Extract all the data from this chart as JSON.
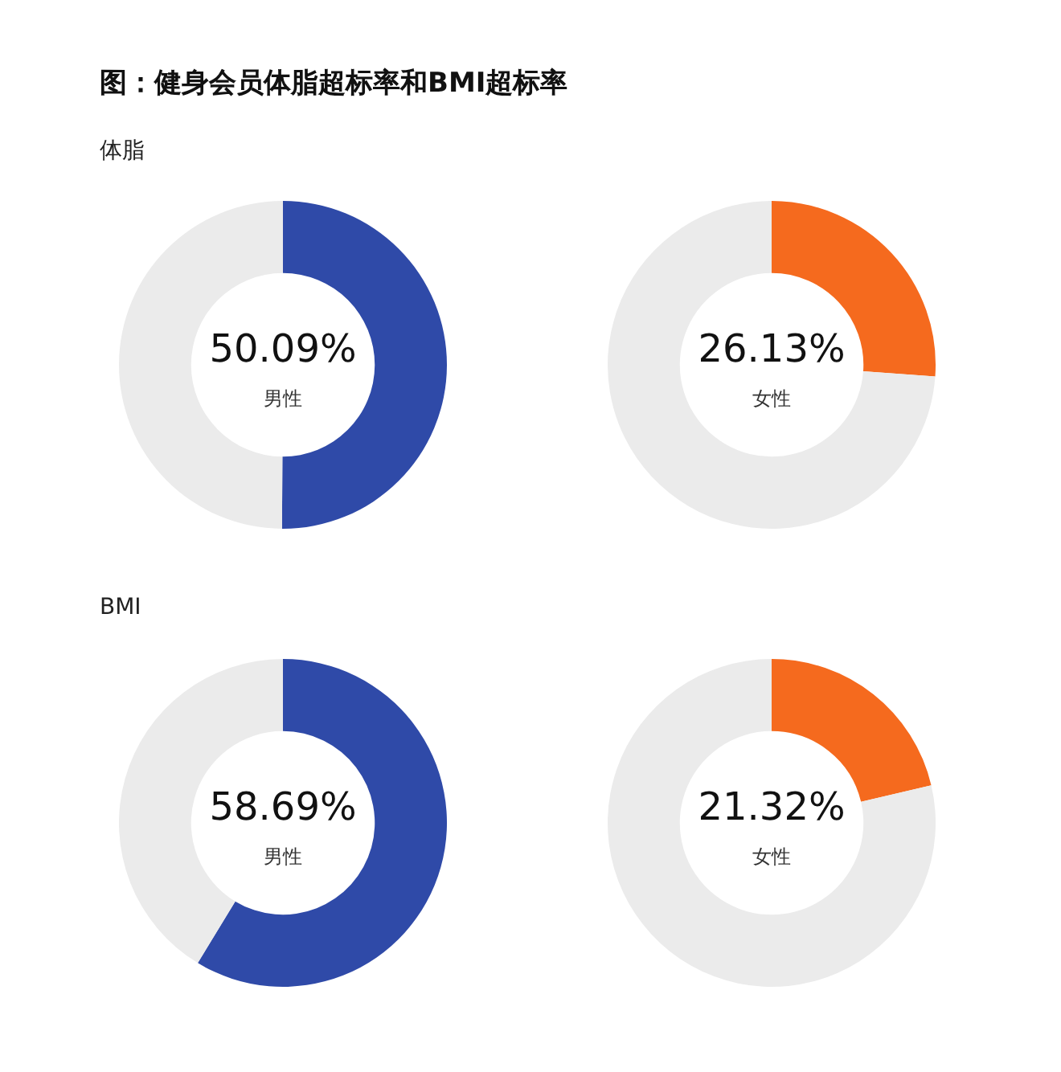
{
  "chart_data": [
    {
      "type": "donut",
      "title": "图：健身会员体脂超标率和BMI超标率",
      "subtitle": "体脂",
      "categories": [
        "男性",
        null
      ],
      "values": [
        50.09,
        49.91
      ],
      "colors": [
        "#2f4aa8",
        "#ebebeb"
      ],
      "value_labels": [
        "50.09%",
        null
      ]
    },
    {
      "type": "donut",
      "categories": [
        "女性",
        null
      ],
      "values": [
        26.13,
        73.87
      ],
      "colors": [
        "#f56a1e",
        "#ebebeb"
      ],
      "value_labels": [
        "26.13%",
        null
      ]
    },
    {
      "type": "donut",
      "subtitle": "BMI",
      "categories": [
        "男性",
        null
      ],
      "values": [
        58.69,
        41.31
      ],
      "colors": [
        "#2f4aa8",
        "#ebebeb"
      ],
      "value_labels": [
        "58.69%",
        null
      ]
    },
    {
      "type": "donut",
      "categories": [
        "女性",
        null
      ],
      "values": [
        21.32,
        78.68
      ],
      "colors": [
        "#f56a1e",
        "#ebebeb"
      ],
      "value_labels": [
        "21.32%",
        null
      ]
    }
  ]
}
